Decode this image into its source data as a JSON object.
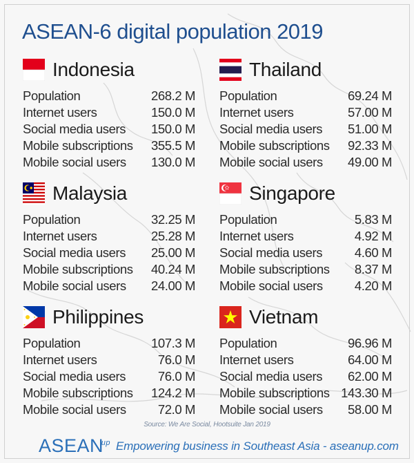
{
  "title": "ASEAN-6 digital population 2019",
  "countries": [
    {
      "name": "Indonesia",
      "flag": "indonesia-flag",
      "rows": [
        {
          "label": "Population",
          "value": "268.2 M"
        },
        {
          "label": "Internet users",
          "value": "150.0 M"
        },
        {
          "label": "Social media users",
          "value": "150.0 M"
        },
        {
          "label": "Mobile subscriptions",
          "value": "355.5 M"
        },
        {
          "label": "Mobile social users",
          "value": "130.0 M"
        }
      ]
    },
    {
      "name": "Thailand",
      "flag": "thailand-flag",
      "rows": [
        {
          "label": "Population",
          "value": "69.24 M"
        },
        {
          "label": "Internet users",
          "value": "57.00 M"
        },
        {
          "label": "Social media users",
          "value": "51.00 M"
        },
        {
          "label": "Mobile subscriptions",
          "value": "92.33 M"
        },
        {
          "label": "Mobile social users",
          "value": "49.00 M"
        }
      ]
    },
    {
      "name": "Malaysia",
      "flag": "malaysia-flag",
      "rows": [
        {
          "label": "Population",
          "value": "32.25 M"
        },
        {
          "label": "Internet users",
          "value": "25.28 M"
        },
        {
          "label": "Social media users",
          "value": "25.00 M"
        },
        {
          "label": "Mobile subscriptions",
          "value": "40.24 M"
        },
        {
          "label": "Mobile social users",
          "value": "24.00 M"
        }
      ]
    },
    {
      "name": "Singapore",
      "flag": "singapore-flag",
      "rows": [
        {
          "label": "Population",
          "value": "5.83 M"
        },
        {
          "label": "Internet users",
          "value": "4.92 M"
        },
        {
          "label": "Social media users",
          "value": "4.60 M"
        },
        {
          "label": "Mobile subscriptions",
          "value": "8.37 M"
        },
        {
          "label": "Mobile social users",
          "value": "4.20 M"
        }
      ]
    },
    {
      "name": "Philippines",
      "flag": "philippines-flag",
      "rows": [
        {
          "label": "Population",
          "value": "107.3 M"
        },
        {
          "label": "Internet users",
          "value": "76.0 M"
        },
        {
          "label": "Social media users",
          "value": "76.0 M"
        },
        {
          "label": "Mobile subscriptions",
          "value": "124.2 M"
        },
        {
          "label": "Mobile social users",
          "value": "72.0 M"
        }
      ]
    },
    {
      "name": "Vietnam",
      "flag": "vietnam-flag",
      "rows": [
        {
          "label": "Population",
          "value": "96.96 M"
        },
        {
          "label": "Internet users",
          "value": "64.00 M"
        },
        {
          "label": "Social media users",
          "value": "62.00 M"
        },
        {
          "label": "Mobile subscriptions",
          "value": "143.30 M"
        },
        {
          "label": "Mobile social users",
          "value": "58.00 M"
        }
      ]
    }
  ],
  "source": "Source: We Are Social, Hootsuite Jan 2019",
  "footer": {
    "logo_text": "ASEAN",
    "logo_sup": "up",
    "tagline": "Empowering business in Southeast Asia - aseanup.com"
  },
  "colors": {
    "title": "#1f4f8f",
    "brand": "#2a6fb8",
    "background": "#f7f7f7"
  }
}
